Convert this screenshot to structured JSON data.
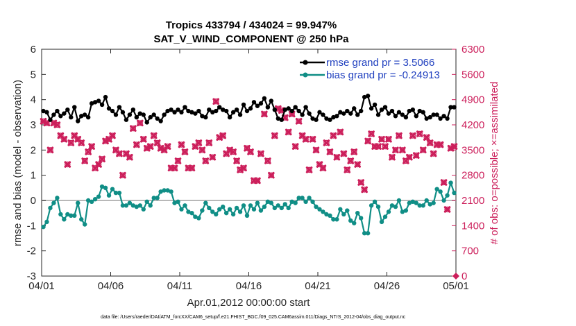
{
  "chart_data": {
    "type": "line",
    "title": "Tropics 433794 / 434024 = 99.947%",
    "subtitle": "SAT_V_WIND_COMPONENT @ 250 hPa",
    "xlabel": "Apr.01,2012 00:00:00 start",
    "ylabel": "rmse and bias (model - observation)",
    "y2label": "# of obs: o=possible; ×=assimilated",
    "footer": "data file: /Users/raeder/DAI/ATM_forcXX/CAM6_setup/f.e21.FHIST_BGC.f09_025.CAM6assim.011/Diags_NTrS_2012-04/obs_diag_output.nc",
    "xlim": [
      0,
      30
    ],
    "ylim": [
      -3,
      6
    ],
    "y2lim": [
      0,
      6300
    ],
    "x_ticks": [
      0,
      5,
      10,
      15,
      20,
      25,
      30
    ],
    "x_tick_labels": [
      "04/01",
      "04/06",
      "04/11",
      "04/16",
      "04/21",
      "04/26",
      "05/01"
    ],
    "y_ticks": [
      -3,
      -2,
      -1,
      0,
      1,
      2,
      3,
      4,
      5,
      6
    ],
    "y_tick_labels": [
      "-3",
      "-2",
      "-1",
      "0",
      "1",
      "2",
      "3",
      "4",
      "5",
      "6"
    ],
    "y2_ticks": [
      0,
      700,
      1400,
      2100,
      2800,
      3500,
      4200,
      4900,
      5600,
      6300
    ],
    "y2_tick_labels": [
      "0",
      "700",
      "1400",
      "2100",
      "2800",
      "3500",
      "4200",
      "4900",
      "5600",
      "6300"
    ],
    "series": [
      {
        "name": "rmse grand pr = 3.5066",
        "color": "#000000",
        "axis": "left",
        "x": [
          0.125,
          0.375,
          0.625,
          0.875,
          1.125,
          1.375,
          1.625,
          1.875,
          2.125,
          2.375,
          2.625,
          2.875,
          3.125,
          3.375,
          3.625,
          3.875,
          4.125,
          4.375,
          4.625,
          4.875,
          5.125,
          5.375,
          5.625,
          5.875,
          6.125,
          6.375,
          6.625,
          6.875,
          7.125,
          7.375,
          7.625,
          7.875,
          8.125,
          8.375,
          8.625,
          8.875,
          9.125,
          9.375,
          9.625,
          9.875,
          10.125,
          10.375,
          10.625,
          10.875,
          11.125,
          11.375,
          11.625,
          11.875,
          12.125,
          12.375,
          12.625,
          12.875,
          13.125,
          13.375,
          13.625,
          13.875,
          14.125,
          14.375,
          14.625,
          14.875,
          15.125,
          15.375,
          15.625,
          15.875,
          16.125,
          16.375,
          16.625,
          16.875,
          17.125,
          17.375,
          17.625,
          17.875,
          18.125,
          18.375,
          18.625,
          18.875,
          19.125,
          19.375,
          19.625,
          19.875,
          20.125,
          20.375,
          20.625,
          20.875,
          21.125,
          21.375,
          21.625,
          21.875,
          22.125,
          22.375,
          22.625,
          22.875,
          23.125,
          23.375,
          23.625,
          23.875,
          24.125,
          24.375,
          24.625,
          24.875,
          25.125,
          25.375,
          25.625,
          25.875,
          26.125,
          26.375,
          26.625,
          26.875,
          27.125,
          27.375,
          27.625,
          27.875,
          28.125,
          28.375,
          28.625,
          28.875,
          29.125,
          29.375,
          29.625,
          29.875
        ],
        "values": [
          3.55,
          3.5,
          3.2,
          3.4,
          3.55,
          3.35,
          3.45,
          3.6,
          3.3,
          3.7,
          3.15,
          3.35,
          3.4,
          3.3,
          3.85,
          3.9,
          3.95,
          3.8,
          4.1,
          3.65,
          3.55,
          3.4,
          3.7,
          3.5,
          3.2,
          3.4,
          3.6,
          3.3,
          3.45,
          3.4,
          3.1,
          3.3,
          3.4,
          3.25,
          3.15,
          3.4,
          3.55,
          3.6,
          3.5,
          3.6,
          3.5,
          3.7,
          3.55,
          3.5,
          3.45,
          3.55,
          3.35,
          3.3,
          3.6,
          3.5,
          3.55,
          3.7,
          3.6,
          3.55,
          3.3,
          3.5,
          3.6,
          3.4,
          3.8,
          3.55,
          3.65,
          3.9,
          3.75,
          3.85,
          4.05,
          3.7,
          3.95,
          3.6,
          3.25,
          3.2,
          3.6,
          3.65,
          3.55,
          3.7,
          3.55,
          3.4,
          3.7,
          3.45,
          3.25,
          3.2,
          3.5,
          3.4,
          3.25,
          3.2,
          3.3,
          3.35,
          3.5,
          3.45,
          3.55,
          3.45,
          3.65,
          3.4,
          3.55,
          4.1,
          4.15,
          3.65,
          3.8,
          3.4,
          3.6,
          3.7,
          3.45,
          3.55,
          3.35,
          3.5,
          3.4,
          3.3,
          3.55,
          3.6,
          3.35,
          3.55,
          3.5,
          3.25,
          3.3,
          3.4,
          3.4,
          3.25,
          3.35,
          3.25,
          3.7,
          3.7
        ]
      },
      {
        "name": "bias grand pr = -0.24913",
        "color": "#108e86",
        "axis": "left",
        "x": [
          0.125,
          0.375,
          0.625,
          0.875,
          1.125,
          1.375,
          1.625,
          1.875,
          2.125,
          2.375,
          2.625,
          2.875,
          3.125,
          3.375,
          3.625,
          3.875,
          4.125,
          4.375,
          4.625,
          4.875,
          5.125,
          5.375,
          5.625,
          5.875,
          6.125,
          6.375,
          6.625,
          6.875,
          7.125,
          7.375,
          7.625,
          7.875,
          8.125,
          8.375,
          8.625,
          8.875,
          9.125,
          9.375,
          9.625,
          9.875,
          10.125,
          10.375,
          10.625,
          10.875,
          11.125,
          11.375,
          11.625,
          11.875,
          12.125,
          12.375,
          12.625,
          12.875,
          13.125,
          13.375,
          13.625,
          13.875,
          14.125,
          14.375,
          14.625,
          14.875,
          15.125,
          15.375,
          15.625,
          15.875,
          16.125,
          16.375,
          16.625,
          16.875,
          17.125,
          17.375,
          17.625,
          17.875,
          18.125,
          18.375,
          18.625,
          18.875,
          19.125,
          19.375,
          19.625,
          19.875,
          20.125,
          20.375,
          20.625,
          20.875,
          21.125,
          21.375,
          21.625,
          21.875,
          22.125,
          22.375,
          22.625,
          22.875,
          23.125,
          23.375,
          23.625,
          23.875,
          24.125,
          24.375,
          24.625,
          24.875,
          25.125,
          25.375,
          25.625,
          25.875,
          26.125,
          26.375,
          26.625,
          26.875,
          27.125,
          27.375,
          27.625,
          27.875,
          28.125,
          28.375,
          28.625,
          28.875,
          29.125,
          29.375,
          29.625,
          29.875
        ],
        "values": [
          -1.05,
          -0.85,
          -0.3,
          -0.1,
          0.1,
          -0.55,
          -0.75,
          -0.55,
          -0.6,
          -0.6,
          -0.1,
          -0.75,
          -0.95,
          0.0,
          -0.05,
          0.05,
          0.15,
          0.55,
          0.5,
          0.2,
          0.45,
          0.3,
          0.3,
          -0.2,
          -0.2,
          -0.1,
          -0.2,
          -0.25,
          -0.2,
          -0.35,
          -0.05,
          -0.2,
          0.1,
          0.1,
          0.35,
          0.4,
          0.4,
          0.35,
          -0.1,
          -0.05,
          -0.35,
          -0.2,
          -0.45,
          -0.5,
          -0.65,
          -0.7,
          -0.4,
          -0.1,
          -0.3,
          -0.45,
          -0.55,
          -0.35,
          -0.25,
          -0.5,
          -0.35,
          -0.55,
          -0.3,
          -0.45,
          -0.2,
          -0.6,
          -0.2,
          -0.35,
          -0.1,
          -0.4,
          -0.25,
          -0.05,
          -0.1,
          -0.3,
          -0.2,
          -0.3,
          -0.15,
          -0.3,
          -0.05,
          -0.1,
          0.1,
          0.1,
          -0.05,
          0.1,
          -0.05,
          -0.25,
          -0.35,
          -0.45,
          -0.55,
          -0.6,
          -0.75,
          -0.75,
          -0.35,
          -0.55,
          -0.4,
          -0.8,
          -0.9,
          -0.5,
          -0.7,
          -1.3,
          -1.3,
          -0.2,
          -0.05,
          -0.25,
          -0.85,
          -0.65,
          -0.45,
          -0.2,
          -0.25,
          0.0,
          -0.45,
          -0.4,
          -0.1,
          -0.05,
          -0.1,
          -0.2,
          -0.2,
          0.0,
          -0.15,
          -0.1,
          0.45,
          0.35,
          0.0,
          0.2,
          0.7,
          0.3
        ]
      },
      {
        "name": "# of obs assimilated",
        "color": "#cc1f5b",
        "axis": "right",
        "x": [
          0.125,
          0.375,
          0.625,
          0.875,
          1.125,
          1.375,
          1.625,
          1.875,
          2.125,
          2.375,
          2.625,
          2.875,
          3.125,
          3.375,
          3.625,
          3.875,
          4.125,
          4.375,
          4.625,
          4.875,
          5.125,
          5.375,
          5.625,
          5.875,
          6.125,
          6.375,
          6.625,
          6.875,
          7.125,
          7.375,
          7.625,
          7.875,
          8.125,
          8.375,
          8.625,
          8.875,
          9.125,
          9.375,
          9.625,
          9.875,
          10.125,
          10.375,
          10.625,
          10.875,
          11.125,
          11.375,
          11.625,
          11.875,
          12.125,
          12.375,
          12.625,
          12.875,
          13.125,
          13.375,
          13.625,
          13.875,
          14.125,
          14.375,
          14.625,
          14.875,
          15.125,
          15.375,
          15.625,
          15.875,
          16.125,
          16.375,
          16.625,
          16.875,
          17.125,
          17.375,
          17.625,
          17.875,
          18.125,
          18.375,
          18.625,
          18.875,
          19.125,
          19.375,
          19.625,
          19.875,
          20.125,
          20.375,
          20.625,
          20.875,
          21.125,
          21.375,
          21.625,
          21.875,
          22.125,
          22.375,
          22.625,
          22.875,
          23.125,
          23.375,
          23.625,
          23.875,
          24.125,
          24.375,
          24.625,
          24.875,
          25.125,
          25.375,
          25.625,
          25.875,
          26.125,
          26.375,
          26.625,
          26.875,
          27.125,
          27.375,
          27.625,
          27.875,
          28.125,
          28.375,
          28.625,
          28.875,
          29.125,
          29.375,
          29.625,
          29.875
        ],
        "values": [
          4300,
          4250,
          3500,
          4250,
          4200,
          3900,
          3800,
          3100,
          3700,
          3900,
          3800,
          3700,
          3200,
          3450,
          3600,
          3000,
          3100,
          3250,
          3750,
          3800,
          3900,
          3500,
          3400,
          2800,
          3400,
          3300,
          4100,
          3650,
          4250,
          3800,
          3550,
          3600,
          3900,
          3700,
          3550,
          3500,
          3600,
          3000,
          3000,
          3200,
          3650,
          3450,
          3000,
          3000,
          3600,
          3700,
          3500,
          3200,
          3700,
          3300,
          4850,
          3850,
          3900,
          3400,
          3500,
          3450,
          3200,
          2950,
          3000,
          3550,
          3450,
          2650,
          2650,
          3400,
          4500,
          3200,
          2800,
          3900,
          4650,
          4600,
          4400,
          4000,
          4500,
          3600,
          4300,
          3900,
          3800,
          2950,
          3800,
          3500,
          3100,
          3000,
          3700,
          3450,
          3900,
          3300,
          4000,
          3400,
          2950,
          3200,
          3450,
          3100,
          2600,
          2400,
          3750,
          3950,
          3600,
          3600,
          3800,
          3600,
          3800,
          3300,
          3500,
          3900,
          3500,
          3200,
          3300,
          3900,
          3350,
          3950,
          3500,
          3850,
          3700,
          3400,
          3650,
          3650,
          2600,
          1850,
          3550,
          3600
        ]
      },
      {
        "name": "# of obs possible",
        "color": "#cc1f5b",
        "axis": "right",
        "x": [
          0.125,
          0.375,
          0.625,
          0.875,
          1.125,
          1.375,
          1.625,
          1.875,
          2.125,
          2.375,
          2.625,
          2.875,
          3.125,
          3.375,
          3.625,
          3.875,
          4.125,
          4.375,
          4.625,
          4.875,
          5.125,
          5.375,
          5.625,
          5.875,
          6.125,
          6.375,
          6.625,
          6.875,
          7.125,
          7.375,
          7.625,
          7.875,
          8.125,
          8.375,
          8.625,
          8.875,
          9.125,
          9.375,
          9.625,
          9.875,
          10.125,
          10.375,
          10.625,
          10.875,
          11.125,
          11.375,
          11.625,
          11.875,
          12.125,
          12.375,
          12.625,
          12.875,
          13.125,
          13.375,
          13.625,
          13.875,
          14.125,
          14.375,
          14.625,
          14.875,
          15.125,
          15.375,
          15.625,
          15.875,
          16.125,
          16.375,
          16.625,
          16.875,
          17.125,
          17.375,
          17.625,
          17.875,
          18.125,
          18.375,
          18.625,
          18.875,
          19.125,
          19.375,
          19.625,
          19.875,
          20.125,
          20.375,
          20.625,
          20.875,
          21.125,
          21.375,
          21.625,
          21.875,
          22.125,
          22.375,
          22.625,
          22.875,
          23.125,
          23.375,
          23.625,
          23.875,
          24.125,
          24.375,
          24.625,
          24.875,
          25.125,
          25.375,
          25.625,
          25.875,
          26.125,
          26.375,
          26.625,
          26.875,
          27.125,
          27.375,
          27.625,
          27.875,
          28.125,
          28.375,
          28.625,
          28.875,
          29.125,
          29.375,
          29.625,
          29.875
        ],
        "values": [
          4300,
          4250,
          3500,
          4250,
          4200,
          3900,
          3800,
          3100,
          3700,
          3900,
          3800,
          3700,
          3200,
          3450,
          3600,
          3000,
          3100,
          3250,
          3750,
          3800,
          3900,
          3500,
          3400,
          2800,
          3400,
          3300,
          4100,
          3650,
          4250,
          3800,
          3550,
          3600,
          3900,
          3700,
          3550,
          3500,
          3600,
          3000,
          3000,
          3200,
          3650,
          3450,
          3000,
          3000,
          3600,
          3700,
          3500,
          3200,
          3700,
          3300,
          4850,
          3850,
          3900,
          3400,
          3500,
          3450,
          3200,
          2950,
          3000,
          3550,
          3450,
          2650,
          2650,
          3400,
          4500,
          3200,
          2800,
          3900,
          4650,
          4600,
          4400,
          4000,
          4500,
          3600,
          4300,
          3900,
          3800,
          2950,
          3800,
          3500,
          3100,
          3000,
          3700,
          3450,
          3900,
          3300,
          4000,
          3400,
          2950,
          3200,
          3450,
          3100,
          2600,
          2400,
          3750,
          3950,
          3600,
          3600,
          3800,
          3600,
          3800,
          3300,
          3500,
          3900,
          3500,
          3200,
          3300,
          3900,
          3350,
          3950,
          3500,
          3850,
          3700,
          3400,
          3650,
          3650,
          2600,
          1850,
          3550,
          3600
        ]
      }
    ],
    "zero_line": 0,
    "legend_position": "top-right"
  }
}
